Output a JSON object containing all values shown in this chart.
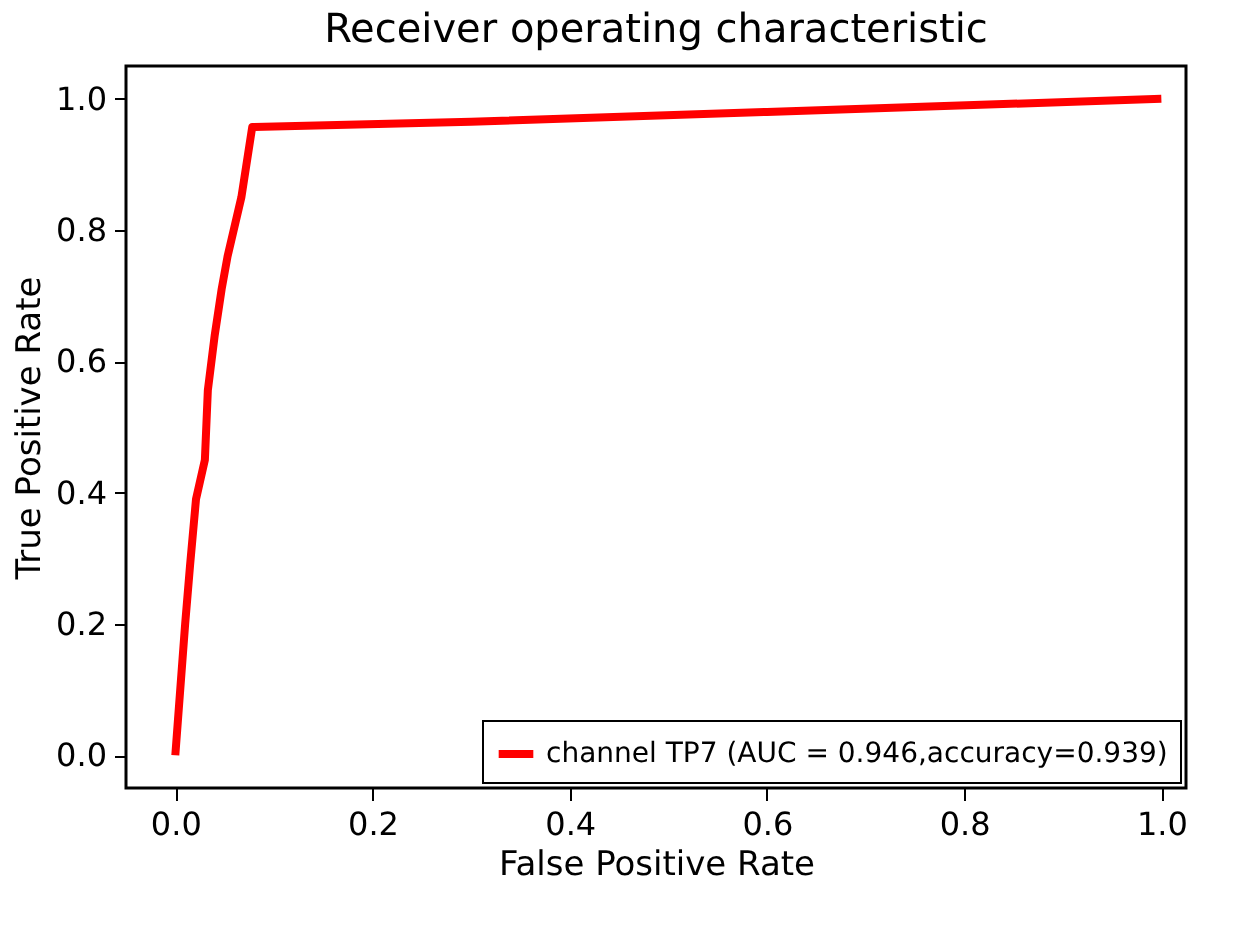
{
  "chart_data": {
    "type": "line",
    "title": "Receiver operating characteristic",
    "xlabel": "False Positive Rate",
    "ylabel": "True Positive Rate",
    "x": [
      0,
      0.01,
      0.015,
      0.021,
      0.03,
      0.033,
      0.04,
      0.047,
      0.053,
      0.067,
      0.078,
      0.3,
      0.6,
      1.0
    ],
    "series": [
      {
        "name": "channel TP7 (AUC = 0.946,accuracy=0.939)",
        "color": "#ff0000",
        "values": [
          0,
          0.2,
          0.29,
          0.39,
          0.45,
          0.556,
          0.64,
          0.71,
          0.76,
          0.85,
          0.957,
          0.965,
          0.98,
          1.0
        ]
      }
    ],
    "xlim": [
      -0.05,
      1.025
    ],
    "ylim": [
      -0.05,
      1.05
    ],
    "xticks": [
      {
        "value": 0,
        "label": "0.0"
      },
      0.2,
      0.4,
      0.6,
      0.8,
      {
        "value": 1,
        "label": "1.0"
      }
    ],
    "yticks": [
      {
        "value": 0,
        "label": "0.0"
      },
      0.2,
      0.4,
      0.6,
      0.8,
      {
        "value": 1,
        "label": "1.0"
      }
    ],
    "grid": false,
    "legend": "bottom right",
    "marker": "none",
    "line_style": "solid"
  }
}
